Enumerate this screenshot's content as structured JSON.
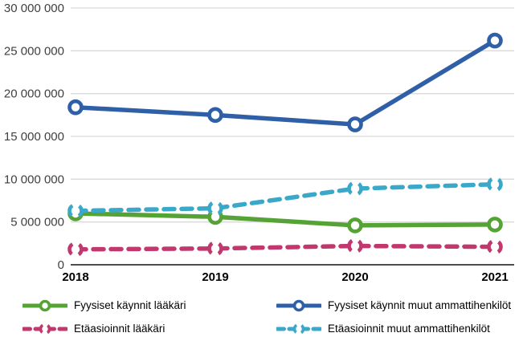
{
  "figure": {
    "background": "#ffffff"
  },
  "chart_data": {
    "type": "line",
    "title": "",
    "xlabel": "",
    "ylabel": "",
    "categories": [
      "2018",
      "2019",
      "2020",
      "2021"
    ],
    "series": [
      {
        "name": "Fyysiset käynnit lääkäri",
        "color": "#56a335",
        "line_style": "solid",
        "marker": "open-circle",
        "values": [
          6000000,
          5600000,
          4600000,
          4700000
        ]
      },
      {
        "name": "Fyysiset käynnit muut ammattihenkilöt",
        "color": "#2e5fa7",
        "line_style": "solid",
        "marker": "open-circle",
        "values": [
          18400000,
          17500000,
          16400000,
          26200000
        ]
      },
      {
        "name": "Etäasioinnit lääkäri",
        "color": "#c0386e",
        "line_style": "dashed",
        "marker": "broken-circle",
        "values": [
          1800000,
          1900000,
          2200000,
          2100000
        ]
      },
      {
        "name": "Etäasioinnit muut ammattihenkilöt",
        "color": "#3aa9c9",
        "line_style": "dashed",
        "marker": "broken-circle",
        "values": [
          6300000,
          6600000,
          8900000,
          9400000
        ]
      }
    ],
    "ylim": [
      0,
      30000000
    ],
    "ytick_step": 5000000,
    "ytick_labels": [
      "0",
      "5 000 000",
      "10 000 000",
      "15 000 000",
      "20 000 000",
      "25 000 000",
      "30 000 000"
    ],
    "grid": "horizontal",
    "legend_position": "bottom-two-columns",
    "colors": {
      "gridline": "#d9d9d9",
      "axis_line": "#4d4d4d",
      "tick_label": "#3f3f3f",
      "category_label": "#000000"
    }
  }
}
